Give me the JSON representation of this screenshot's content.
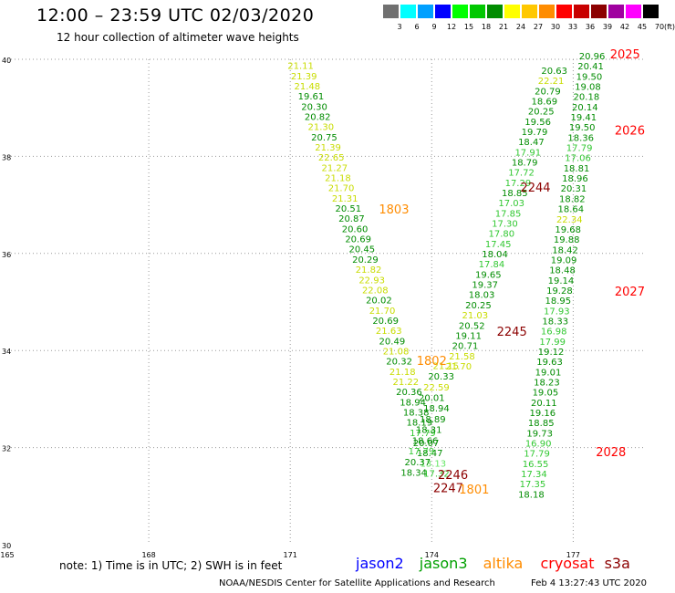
{
  "header": {
    "title": "12:00 – 23:59 UTC 02/03/2020",
    "subtitle": "12 hour collection of altimeter wave heights"
  },
  "scale": {
    "unit": "(ft)",
    "bins": [
      {
        "label": "3",
        "color": "#707070"
      },
      {
        "label": "6",
        "color": "#00ffff"
      },
      {
        "label": "9",
        "color": "#00a0ff"
      },
      {
        "label": "12",
        "color": "#0000ff"
      },
      {
        "label": "15",
        "color": "#00ff00"
      },
      {
        "label": "18",
        "color": "#00c800"
      },
      {
        "label": "21",
        "color": "#008c00"
      },
      {
        "label": "24",
        "color": "#ffff00"
      },
      {
        "label": "27",
        "color": "#ffc800"
      },
      {
        "label": "30",
        "color": "#ff8c00"
      },
      {
        "label": "33",
        "color": "#ff0000"
      },
      {
        "label": "36",
        "color": "#c80000"
      },
      {
        "label": "39",
        "color": "#8c0000"
      },
      {
        "label": "42",
        "color": "#a000a0"
      },
      {
        "label": "45",
        "color": "#ff00ff"
      },
      {
        "label": "70",
        "color": "#000000"
      }
    ]
  },
  "axes": {
    "lat": [
      {
        "v": 40,
        "label": "40"
      },
      {
        "v": 38,
        "label": "38"
      },
      {
        "v": 36,
        "label": "36"
      },
      {
        "v": 34,
        "label": "34"
      },
      {
        "v": 32,
        "label": "32"
      },
      {
        "v": 30,
        "label": "30"
      }
    ],
    "lon": [
      {
        "v": 165,
        "label": "165"
      },
      {
        "v": 168,
        "label": "168"
      },
      {
        "v": 171,
        "label": "171"
      },
      {
        "v": 174,
        "label": "174"
      },
      {
        "v": 177,
        "label": "177"
      }
    ]
  },
  "colors": {
    "range_24_27": "#ffff00",
    "range_21_24": "#c8dc00",
    "range_18_21": "#008c00",
    "range_15_18": "#32c832",
    "range_12_15": "#64e664",
    "time_orange": "#ff8c00",
    "time_red": "#ff0000",
    "time_darkred": "#8c0000",
    "jason2": "#0000ff",
    "jason3": "#00a000",
    "altika": "#ff8c00",
    "cryosat": "#ff0000",
    "s3a": "#8c0000"
  },
  "tracks": [
    {
      "name": "track-west",
      "points": [
        {
          "lon": 171.22,
          "lat": 39.8,
          "v": "21.11"
        },
        {
          "lon": 171.29,
          "lat": 39.59,
          "v": "21.39"
        },
        {
          "lon": 171.36,
          "lat": 39.38,
          "v": "21.48"
        },
        {
          "lon": 171.44,
          "lat": 39.17,
          "v": "19.61"
        },
        {
          "lon": 171.51,
          "lat": 38.96,
          "v": "20.30"
        },
        {
          "lon": 171.58,
          "lat": 38.75,
          "v": "20.82"
        },
        {
          "lon": 171.65,
          "lat": 38.54,
          "v": "21.30"
        },
        {
          "lon": 171.72,
          "lat": 38.33,
          "v": "20.75"
        },
        {
          "lon": 171.8,
          "lat": 38.12,
          "v": "21.39"
        },
        {
          "lon": 171.87,
          "lat": 37.91,
          "v": "22.65"
        },
        {
          "lon": 171.94,
          "lat": 37.7,
          "v": "21.27"
        },
        {
          "lon": 172.01,
          "lat": 37.49,
          "v": "21.18"
        },
        {
          "lon": 172.08,
          "lat": 37.28,
          "v": "21.70"
        },
        {
          "lon": 172.16,
          "lat": 37.07,
          "v": "21.31"
        },
        {
          "lon": 172.23,
          "lat": 36.86,
          "v": "20.51"
        },
        {
          "lon": 172.3,
          "lat": 36.65,
          "v": "20.87"
        },
        {
          "lon": 172.37,
          "lat": 36.44,
          "v": "20.60"
        },
        {
          "lon": 172.44,
          "lat": 36.23,
          "v": "20.69"
        },
        {
          "lon": 172.52,
          "lat": 36.02,
          "v": "20.45"
        },
        {
          "lon": 172.59,
          "lat": 35.81,
          "v": "20.29"
        },
        {
          "lon": 172.66,
          "lat": 35.6,
          "v": "21.82"
        },
        {
          "lon": 172.73,
          "lat": 35.39,
          "v": "22.93"
        },
        {
          "lon": 172.8,
          "lat": 35.18,
          "v": "22.08"
        },
        {
          "lon": 172.88,
          "lat": 34.97,
          "v": "20.02"
        },
        {
          "lon": 172.95,
          "lat": 34.76,
          "v": "21.70"
        },
        {
          "lon": 173.02,
          "lat": 34.55,
          "v": "20.69"
        },
        {
          "lon": 173.09,
          "lat": 34.34,
          "v": "21.63"
        },
        {
          "lon": 173.16,
          "lat": 34.13,
          "v": "20.49"
        },
        {
          "lon": 173.24,
          "lat": 33.92,
          "v": "21.08"
        },
        {
          "lon": 173.31,
          "lat": 33.71,
          "v": "20.32"
        },
        {
          "lon": 173.38,
          "lat": 33.5,
          "v": "21.18"
        },
        {
          "lon": 173.45,
          "lat": 33.29,
          "v": "21.22"
        },
        {
          "lon": 173.52,
          "lat": 33.08,
          "v": "20.36"
        },
        {
          "lon": 173.6,
          "lat": 32.87,
          "v": "18.94"
        },
        {
          "lon": 173.67,
          "lat": 32.66,
          "v": "18.38"
        },
        {
          "lon": 173.74,
          "lat": 32.45,
          "v": "18.19"
        },
        {
          "lon": 173.81,
          "lat": 32.24,
          "v": "17.79"
        },
        {
          "lon": 173.88,
          "lat": 32.03,
          "v": "20.07"
        },
        {
          "lon": 173.96,
          "lat": 31.82,
          "v": "18.47"
        },
        {
          "lon": 174.03,
          "lat": 31.61,
          "v": "13.13"
        },
        {
          "lon": 174.1,
          "lat": 31.4,
          "v": "17.32"
        }
      ]
    },
    {
      "name": "track-middle",
      "points": [
        {
          "lon": 174.3,
          "lat": 33.62,
          "v": "21.15"
        },
        {
          "lon": 174.2,
          "lat": 33.4,
          "v": "20.33"
        },
        {
          "lon": 174.1,
          "lat": 33.18,
          "v": "22.59"
        },
        {
          "lon": 174.0,
          "lat": 32.96,
          "v": "20.01"
        },
        {
          "lon": 174.1,
          "lat": 32.74,
          "v": "18.94"
        },
        {
          "lon": 174.02,
          "lat": 32.52,
          "v": "18.89"
        },
        {
          "lon": 173.94,
          "lat": 32.3,
          "v": "18.31"
        },
        {
          "lon": 173.86,
          "lat": 32.08,
          "v": "18.66"
        },
        {
          "lon": 173.78,
          "lat": 31.86,
          "v": "17.79"
        },
        {
          "lon": 173.7,
          "lat": 31.64,
          "v": "20.37"
        },
        {
          "lon": 173.62,
          "lat": 31.42,
          "v": "18.34"
        }
      ]
    },
    {
      "name": "track-east-a",
      "points": [
        {
          "lon": 176.6,
          "lat": 39.7,
          "v": "20.63"
        },
        {
          "lon": 176.53,
          "lat": 39.49,
          "v": "22.21"
        },
        {
          "lon": 176.46,
          "lat": 39.28,
          "v": "20.79"
        },
        {
          "lon": 176.39,
          "lat": 39.07,
          "v": "18.69"
        },
        {
          "lon": 176.32,
          "lat": 38.86,
          "v": "20.25"
        },
        {
          "lon": 176.25,
          "lat": 38.65,
          "v": "19.56"
        },
        {
          "lon": 176.18,
          "lat": 38.44,
          "v": "19.79"
        },
        {
          "lon": 176.11,
          "lat": 38.23,
          "v": "18.47"
        },
        {
          "lon": 176.04,
          "lat": 38.02,
          "v": "17.91"
        },
        {
          "lon": 175.97,
          "lat": 37.81,
          "v": "18.79"
        },
        {
          "lon": 175.9,
          "lat": 37.6,
          "v": "17.72"
        },
        {
          "lon": 175.83,
          "lat": 37.39,
          "v": "17.29"
        },
        {
          "lon": 175.76,
          "lat": 37.18,
          "v": "18.85"
        },
        {
          "lon": 175.69,
          "lat": 36.97,
          "v": "17.03"
        },
        {
          "lon": 175.62,
          "lat": 36.76,
          "v": "17.85"
        },
        {
          "lon": 175.55,
          "lat": 36.55,
          "v": "17.30"
        },
        {
          "lon": 175.48,
          "lat": 36.34,
          "v": "17.80"
        },
        {
          "lon": 175.41,
          "lat": 36.13,
          "v": "17.45"
        },
        {
          "lon": 175.34,
          "lat": 35.92,
          "v": "18.04"
        },
        {
          "lon": 175.27,
          "lat": 35.71,
          "v": "17.84"
        },
        {
          "lon": 175.2,
          "lat": 35.5,
          "v": "19.65"
        },
        {
          "lon": 175.13,
          "lat": 35.29,
          "v": "19.37"
        },
        {
          "lon": 175.06,
          "lat": 35.08,
          "v": "18.03"
        },
        {
          "lon": 174.99,
          "lat": 34.87,
          "v": "20.25"
        },
        {
          "lon": 174.92,
          "lat": 34.66,
          "v": "21.03"
        },
        {
          "lon": 174.85,
          "lat": 34.45,
          "v": "20.52"
        },
        {
          "lon": 174.78,
          "lat": 34.24,
          "v": "19.11"
        },
        {
          "lon": 174.71,
          "lat": 34.03,
          "v": "20.71"
        },
        {
          "lon": 174.64,
          "lat": 33.82,
          "v": "21.58"
        },
        {
          "lon": 174.57,
          "lat": 33.61,
          "v": "21.70"
        }
      ]
    },
    {
      "name": "track-east-b",
      "points": [
        {
          "lon": 177.4,
          "lat": 40.0,
          "v": "20.96"
        },
        {
          "lon": 177.37,
          "lat": 39.79,
          "v": "20.41"
        },
        {
          "lon": 177.34,
          "lat": 39.58,
          "v": "19.50"
        },
        {
          "lon": 177.31,
          "lat": 39.37,
          "v": "19.08"
        },
        {
          "lon": 177.28,
          "lat": 39.16,
          "v": "20.18"
        },
        {
          "lon": 177.25,
          "lat": 38.95,
          "v": "20.14"
        },
        {
          "lon": 177.22,
          "lat": 38.74,
          "v": "19.41"
        },
        {
          "lon": 177.19,
          "lat": 38.53,
          "v": "19.50"
        },
        {
          "lon": 177.16,
          "lat": 38.32,
          "v": "18.36"
        },
        {
          "lon": 177.13,
          "lat": 38.11,
          "v": "17.79"
        },
        {
          "lon": 177.1,
          "lat": 37.9,
          "v": "17.06"
        },
        {
          "lon": 177.07,
          "lat": 37.69,
          "v": "18.81"
        },
        {
          "lon": 177.04,
          "lat": 37.48,
          "v": "18.96"
        },
        {
          "lon": 177.01,
          "lat": 37.27,
          "v": "20.31"
        },
        {
          "lon": 176.98,
          "lat": 37.06,
          "v": "18.82"
        },
        {
          "lon": 176.95,
          "lat": 36.85,
          "v": "18.64"
        },
        {
          "lon": 176.92,
          "lat": 36.64,
          "v": "22.34"
        },
        {
          "lon": 176.89,
          "lat": 36.43,
          "v": "19.68"
        },
        {
          "lon": 176.86,
          "lat": 36.22,
          "v": "19.88"
        },
        {
          "lon": 176.83,
          "lat": 36.01,
          "v": "18.42"
        },
        {
          "lon": 176.8,
          "lat": 35.8,
          "v": "19.09"
        },
        {
          "lon": 176.77,
          "lat": 35.59,
          "v": "18.48"
        },
        {
          "lon": 176.74,
          "lat": 35.38,
          "v": "19.14"
        },
        {
          "lon": 176.71,
          "lat": 35.17,
          "v": "19.28"
        },
        {
          "lon": 176.68,
          "lat": 34.96,
          "v": "18.95"
        },
        {
          "lon": 176.65,
          "lat": 34.75,
          "v": "17.93"
        },
        {
          "lon": 176.62,
          "lat": 34.54,
          "v": "18.33"
        },
        {
          "lon": 176.59,
          "lat": 34.33,
          "v": "16.98"
        },
        {
          "lon": 176.56,
          "lat": 34.12,
          "v": "17.99"
        },
        {
          "lon": 176.53,
          "lat": 33.91,
          "v": "19.12"
        },
        {
          "lon": 176.5,
          "lat": 33.7,
          "v": "19.63"
        },
        {
          "lon": 176.47,
          "lat": 33.49,
          "v": "19.01"
        },
        {
          "lon": 176.44,
          "lat": 33.28,
          "v": "18.23"
        },
        {
          "lon": 176.41,
          "lat": 33.07,
          "v": "19.05"
        },
        {
          "lon": 176.38,
          "lat": 32.86,
          "v": "20.11"
        },
        {
          "lon": 176.35,
          "lat": 32.65,
          "v": "19.16"
        },
        {
          "lon": 176.32,
          "lat": 32.44,
          "v": "18.85"
        },
        {
          "lon": 176.29,
          "lat": 32.23,
          "v": "19.73"
        },
        {
          "lon": 176.26,
          "lat": 32.02,
          "v": "16.90"
        },
        {
          "lon": 176.23,
          "lat": 31.81,
          "v": "17.79"
        },
        {
          "lon": 176.2,
          "lat": 31.6,
          "v": "16.55"
        },
        {
          "lon": 176.17,
          "lat": 31.39,
          "v": "17.34"
        },
        {
          "lon": 176.14,
          "lat": 31.18,
          "v": "17.35"
        },
        {
          "lon": 176.11,
          "lat": 30.97,
          "v": "18.18"
        }
      ]
    }
  ],
  "time_labels": [
    {
      "label": "2025",
      "lon": 178.1,
      "lat": 40.02,
      "c": "time_red"
    },
    {
      "label": "2026",
      "lon": 178.2,
      "lat": 38.45,
      "c": "time_red"
    },
    {
      "label": "1803",
      "lon": 173.2,
      "lat": 36.82,
      "c": "time_orange"
    },
    {
      "label": "2244",
      "lon": 176.2,
      "lat": 37.27,
      "c": "time_darkred"
    },
    {
      "label": "2027",
      "lon": 178.2,
      "lat": 35.13,
      "c": "time_red"
    },
    {
      "label": "2245",
      "lon": 175.7,
      "lat": 34.3,
      "c": "time_darkred"
    },
    {
      "label": "1802",
      "lon": 174.0,
      "lat": 33.7,
      "c": "time_orange"
    },
    {
      "label": "2028",
      "lon": 177.8,
      "lat": 31.82,
      "c": "time_red"
    },
    {
      "label": "2246",
      "lon": 174.45,
      "lat": 31.35,
      "c": "time_darkred"
    },
    {
      "label": "2247",
      "lon": 174.35,
      "lat": 31.08,
      "c": "time_darkred"
    },
    {
      "label": "1801",
      "lon": 174.9,
      "lat": 31.05,
      "c": "time_orange"
    }
  ],
  "footer": {
    "note": "note: 1) Time is in UTC; 2) SWH is in feet",
    "legend": {
      "jason2": "jason2",
      "jason3": "jason3",
      "altika": "altika",
      "cryosat": "cryosat",
      "s3a": "s3a"
    },
    "credit": "NOAA/NESDIS Center for Satellite Applications and Research",
    "timestamp": "Feb  4 13:27:43 UTC 2020"
  }
}
